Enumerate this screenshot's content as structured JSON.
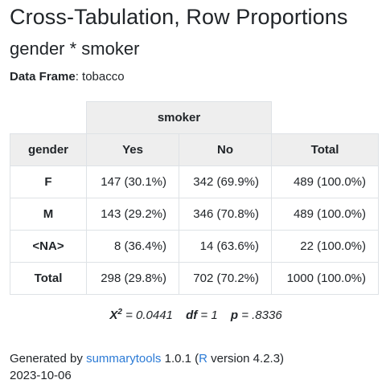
{
  "title": "Cross-Tabulation, Row Proportions",
  "subtitle": "gender * smoker",
  "dataframe": {
    "label": "Data Frame",
    "value": "tobacco"
  },
  "table": {
    "col_group": "smoker",
    "row_var": "gender",
    "columns": [
      "Yes",
      "No",
      "Total"
    ],
    "rows": [
      {
        "label": "F",
        "cells": [
          "147 (30.1%)",
          "342 (69.9%)",
          "489 (100.0%)"
        ]
      },
      {
        "label": "M",
        "cells": [
          "143 (29.2%)",
          "346 (70.8%)",
          "489 (100.0%)"
        ]
      },
      {
        "label": "<NA>",
        "cells": [
          "8 (36.4%)",
          "14 (63.6%)",
          "22 (100.0%)"
        ]
      },
      {
        "label": "Total",
        "cells": [
          "298 (29.8%)",
          "702 (70.2%)",
          "1000 (100.0%)"
        ]
      }
    ]
  },
  "stats": {
    "chi_label": "X",
    "chi_sup": "2",
    "chi_value": "= 0.0441",
    "df_label": "df",
    "df_value": "= 1",
    "p_label": "p",
    "p_value": "= .8336"
  },
  "footer": {
    "generated_by": "Generated by",
    "pkg_link": "summarytools",
    "pkg_version": "1.0.1 (",
    "r_link": "R",
    "r_version": "version 4.2.3)",
    "date": "2023-10-06"
  },
  "colors": {
    "header_bg": "#eeeeee",
    "border": "#dee2e6",
    "link": "#2c7bd6"
  }
}
